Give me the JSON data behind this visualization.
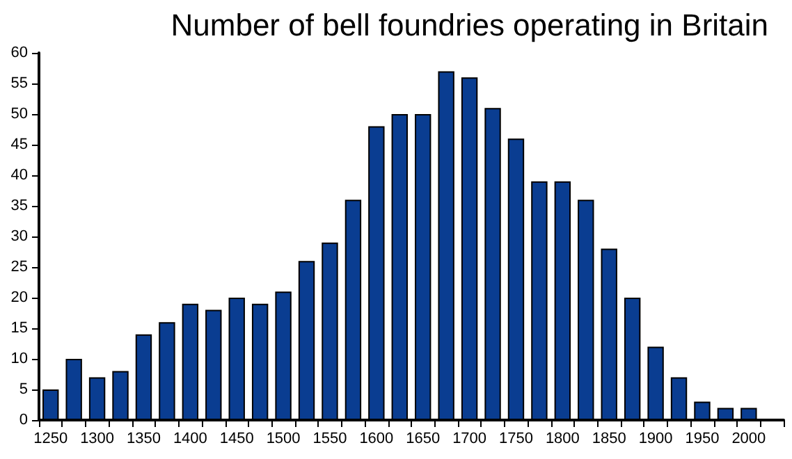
{
  "chart_data": {
    "type": "bar",
    "title": "Number of bell foundries operating in Britain",
    "categories": [
      "1250",
      null,
      "1300",
      null,
      "1350",
      null,
      "1400",
      null,
      "1450",
      null,
      "1500",
      null,
      "1550",
      null,
      "1600",
      null,
      "1650",
      null,
      "1700",
      null,
      "1750",
      null,
      "1800",
      null,
      "1850",
      null,
      "1900",
      null,
      "1950",
      null,
      "2000",
      null
    ],
    "values": [
      5,
      10,
      7,
      8,
      14,
      16,
      19,
      18,
      20,
      19,
      21,
      26,
      29,
      36,
      48,
      50,
      50,
      57,
      56,
      51,
      46,
      39,
      39,
      36,
      28,
      20,
      12,
      7,
      3,
      2,
      2,
      null
    ],
    "color": "#0a3d91",
    "ylim": [
      0,
      60
    ],
    "yticks": [
      0,
      5,
      10,
      15,
      20,
      25,
      30,
      35,
      40,
      45,
      50,
      55,
      60
    ],
    "grid": false
  }
}
